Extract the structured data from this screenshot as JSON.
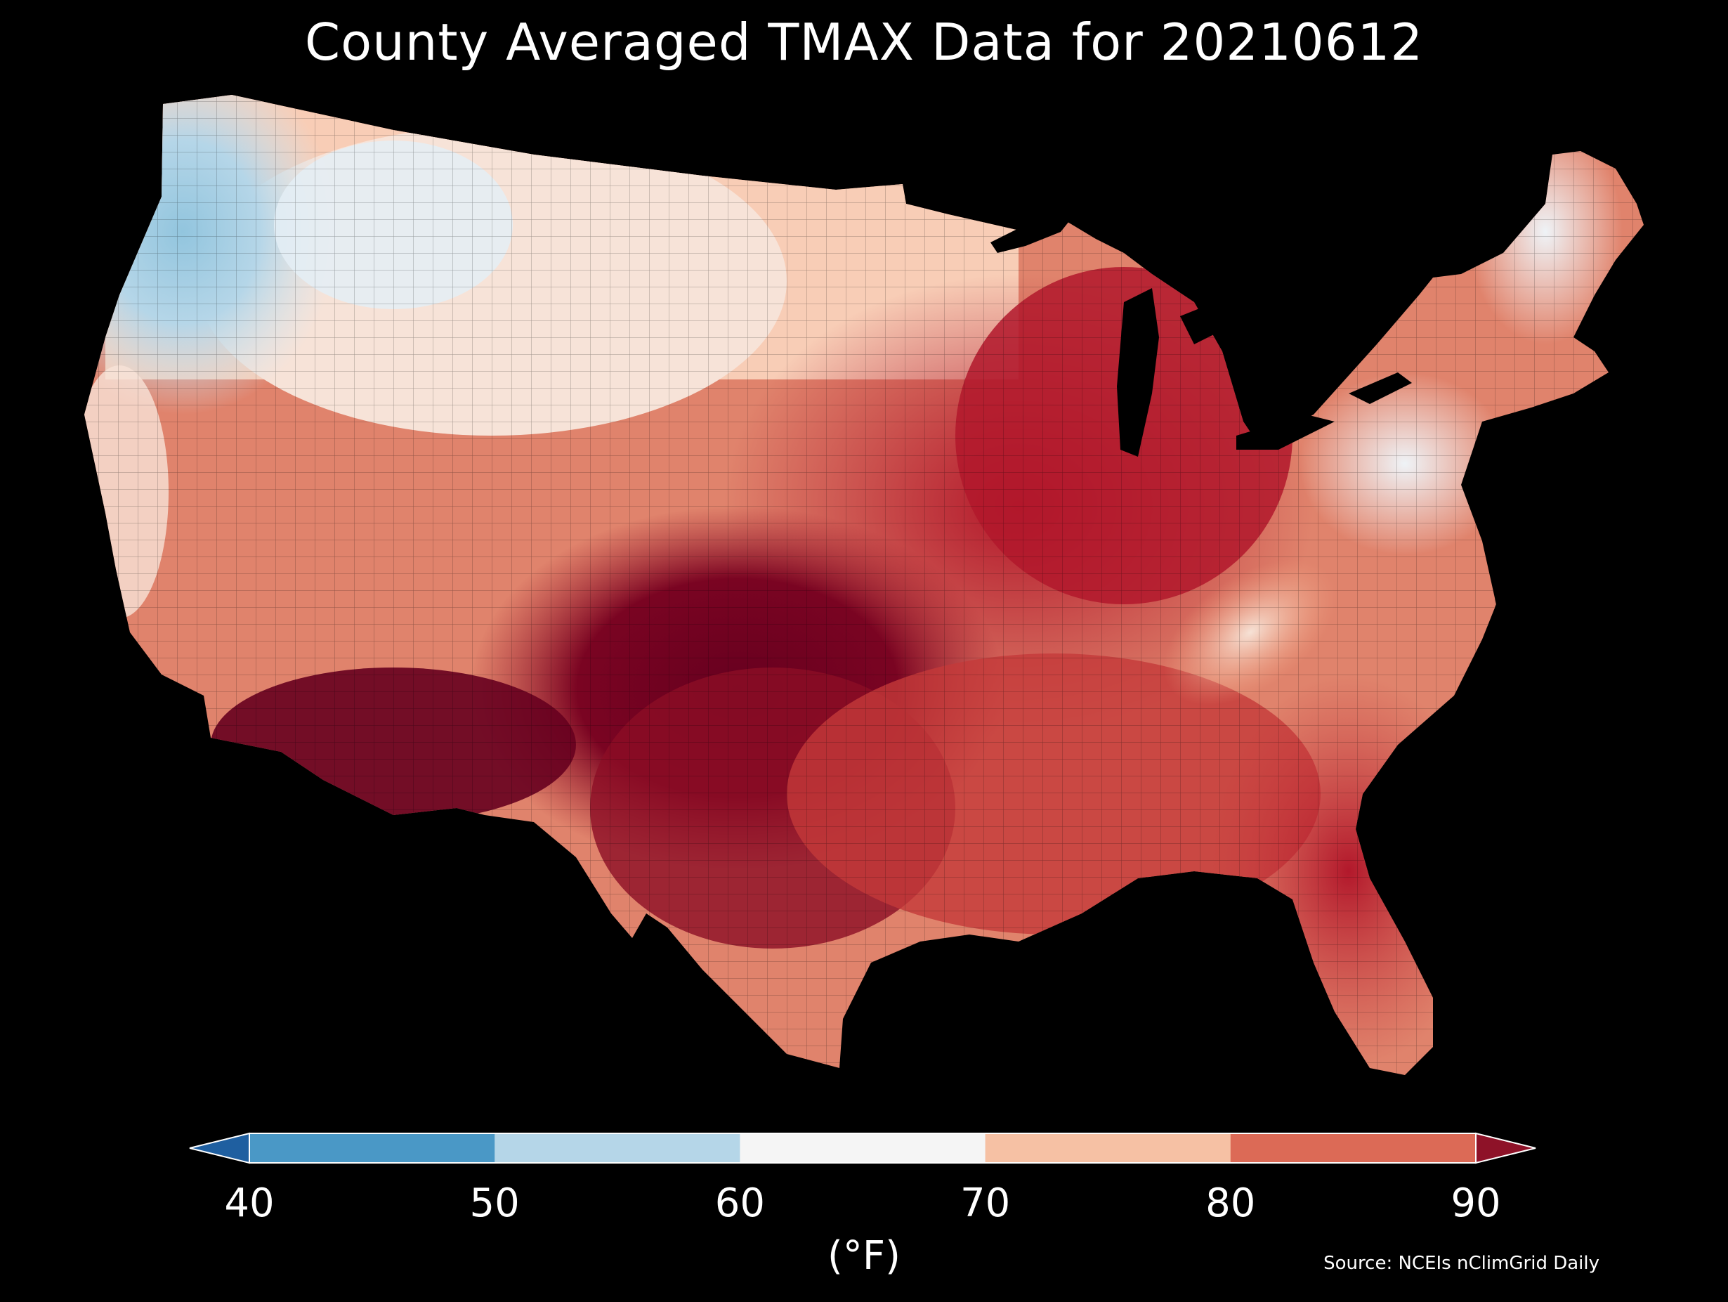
{
  "title": "County Averaged TMAX Data for 20210612",
  "colorbar": {
    "unit_label": "(°F)",
    "ticks": [
      "40",
      "50",
      "60",
      "70",
      "80",
      "90"
    ],
    "bins": [
      {
        "range": "<40",
        "color": "#1f5fa0"
      },
      {
        "range": "40-50",
        "color": "#4a98c6"
      },
      {
        "range": "50-60",
        "color": "#b5d6e8"
      },
      {
        "range": "60-70",
        "color": "#f5f5f5"
      },
      {
        "range": "70-80",
        "color": "#f6c1a4"
      },
      {
        "range": "80-90",
        "color": "#dc6a56"
      },
      {
        "range": ">90",
        "color": "#8e1228"
      }
    ],
    "extend": "both"
  },
  "source": "Source: NCEIs nClimGrid Daily",
  "map": {
    "region": "Contiguous United States",
    "background": "#000000",
    "boundaries": "county",
    "variable": "TMAX"
  }
}
